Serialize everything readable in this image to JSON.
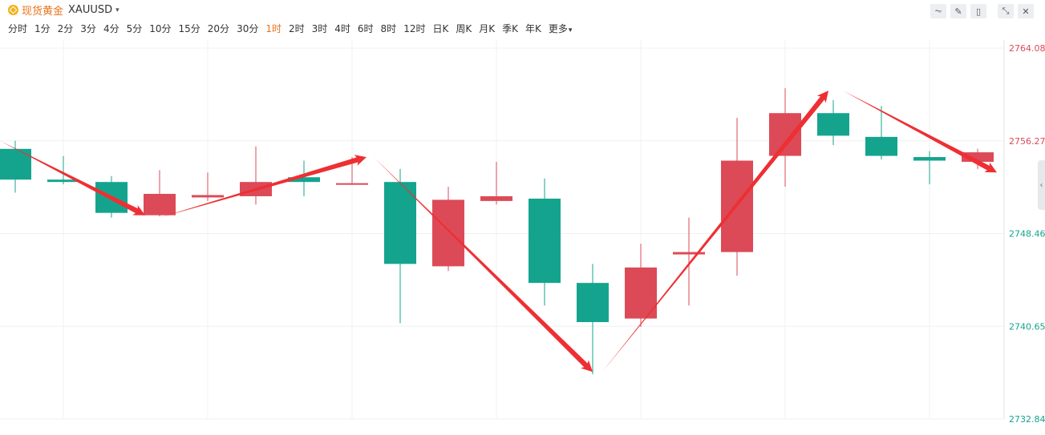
{
  "header": {
    "name": "现货黄金",
    "code": "XAUUSD",
    "caret": "▾"
  },
  "intervals": [
    "分时",
    "1分",
    "2分",
    "3分",
    "4分",
    "5分",
    "10分",
    "15分",
    "20分",
    "30分",
    "1时",
    "2时",
    "3时",
    "4时",
    "6时",
    "8时",
    "12时",
    "日K",
    "周K",
    "月K",
    "季K",
    "年K",
    "更多"
  ],
  "active_interval": "1时",
  "tools": [
    {
      "icon": "line-chart-icon",
      "glyph": "⏦"
    },
    {
      "icon": "pencil-icon",
      "glyph": "✎"
    },
    {
      "icon": "candlestick-icon",
      "glyph": "▯"
    },
    {
      "icon": "collapse-icon",
      "glyph": "⤡"
    },
    {
      "icon": "close-icon",
      "glyph": "✕"
    }
  ],
  "side_handle": "‹",
  "colors": {
    "up": "#dc4a57",
    "down": "#14a48e",
    "arrow": "#ee2f33",
    "grid": "#f0f0f0",
    "active": "#e8731c"
  },
  "chart_data": {
    "type": "candlestick",
    "y_ticks": [
      {
        "value": "2764.08",
        "color": "#dc4a57"
      },
      {
        "value": "2756.27",
        "color": "#dc4a57"
      },
      {
        "value": "2748.46",
        "color": "#14a48e"
      },
      {
        "value": "2740.65",
        "color": "#14a48e"
      },
      {
        "value": "2732.84",
        "color": "#14a48e"
      }
    ],
    "ylim": [
      2732.84,
      2764.08
    ],
    "candles": [
      {
        "open": 2755.59,
        "high": 2756.27,
        "low": 2751.9,
        "close": 2753.0
      },
      {
        "open": 2753.0,
        "high": 2755.0,
        "low": 2752.6,
        "close": 2752.8
      },
      {
        "open": 2752.8,
        "high": 2753.3,
        "low": 2749.8,
        "close": 2750.2
      },
      {
        "open": 2750.0,
        "high": 2753.8,
        "low": 2749.9,
        "close": 2751.8
      },
      {
        "open": 2751.5,
        "high": 2753.6,
        "low": 2751.2,
        "close": 2751.7
      },
      {
        "open": 2751.6,
        "high": 2755.8,
        "low": 2750.9,
        "close": 2752.8
      },
      {
        "open": 2753.2,
        "high": 2754.6,
        "low": 2751.6,
        "close": 2752.8
      },
      {
        "open": 2752.7,
        "high": 2754.9,
        "low": 2752.7,
        "close": 2752.7
      },
      {
        "open": 2752.8,
        "high": 2753.9,
        "low": 2740.9,
        "close": 2745.9
      },
      {
        "open": 2745.7,
        "high": 2752.4,
        "low": 2745.3,
        "close": 2751.3
      },
      {
        "open": 2751.2,
        "high": 2754.5,
        "low": 2750.9,
        "close": 2751.6
      },
      {
        "open": 2751.4,
        "high": 2753.1,
        "low": 2742.4,
        "close": 2744.3
      },
      {
        "open": 2744.3,
        "high": 2745.9,
        "low": 2736.6,
        "close": 2741.0
      },
      {
        "open": 2741.3,
        "high": 2747.6,
        "low": 2740.6,
        "close": 2745.6
      },
      {
        "open": 2746.7,
        "high": 2749.8,
        "low": 2742.4,
        "close": 2746.9
      },
      {
        "open": 2746.9,
        "high": 2758.2,
        "low": 2744.9,
        "close": 2754.6
      },
      {
        "open": 2755.0,
        "high": 2760.7,
        "low": 2752.4,
        "close": 2758.6
      },
      {
        "open": 2758.6,
        "high": 2759.7,
        "low": 2755.9,
        "close": 2756.7
      },
      {
        "open": 2756.6,
        "high": 2759.2,
        "low": 2754.7,
        "close": 2755.0
      },
      {
        "open": 2754.9,
        "high": 2755.4,
        "low": 2752.6,
        "close": 2754.6
      },
      {
        "open": 2754.5,
        "high": 2755.6,
        "low": 2753.9,
        "close": 2755.3
      }
    ],
    "trend_arrows": [
      {
        "from": [
          0,
          2756.27
        ],
        "to": [
          2.7,
          2750.0
        ]
      },
      {
        "from": [
          3.0,
          2749.8
        ],
        "to": [
          7.3,
          2754.9
        ]
      },
      {
        "from": [
          7.45,
          2754.9
        ],
        "to": [
          12.0,
          2736.8
        ]
      },
      {
        "from": [
          12.2,
          2736.8
        ],
        "to": [
          16.9,
          2760.5
        ]
      },
      {
        "from": [
          17.2,
          2760.5
        ],
        "to": [
          20.4,
          2753.6
        ]
      }
    ]
  }
}
